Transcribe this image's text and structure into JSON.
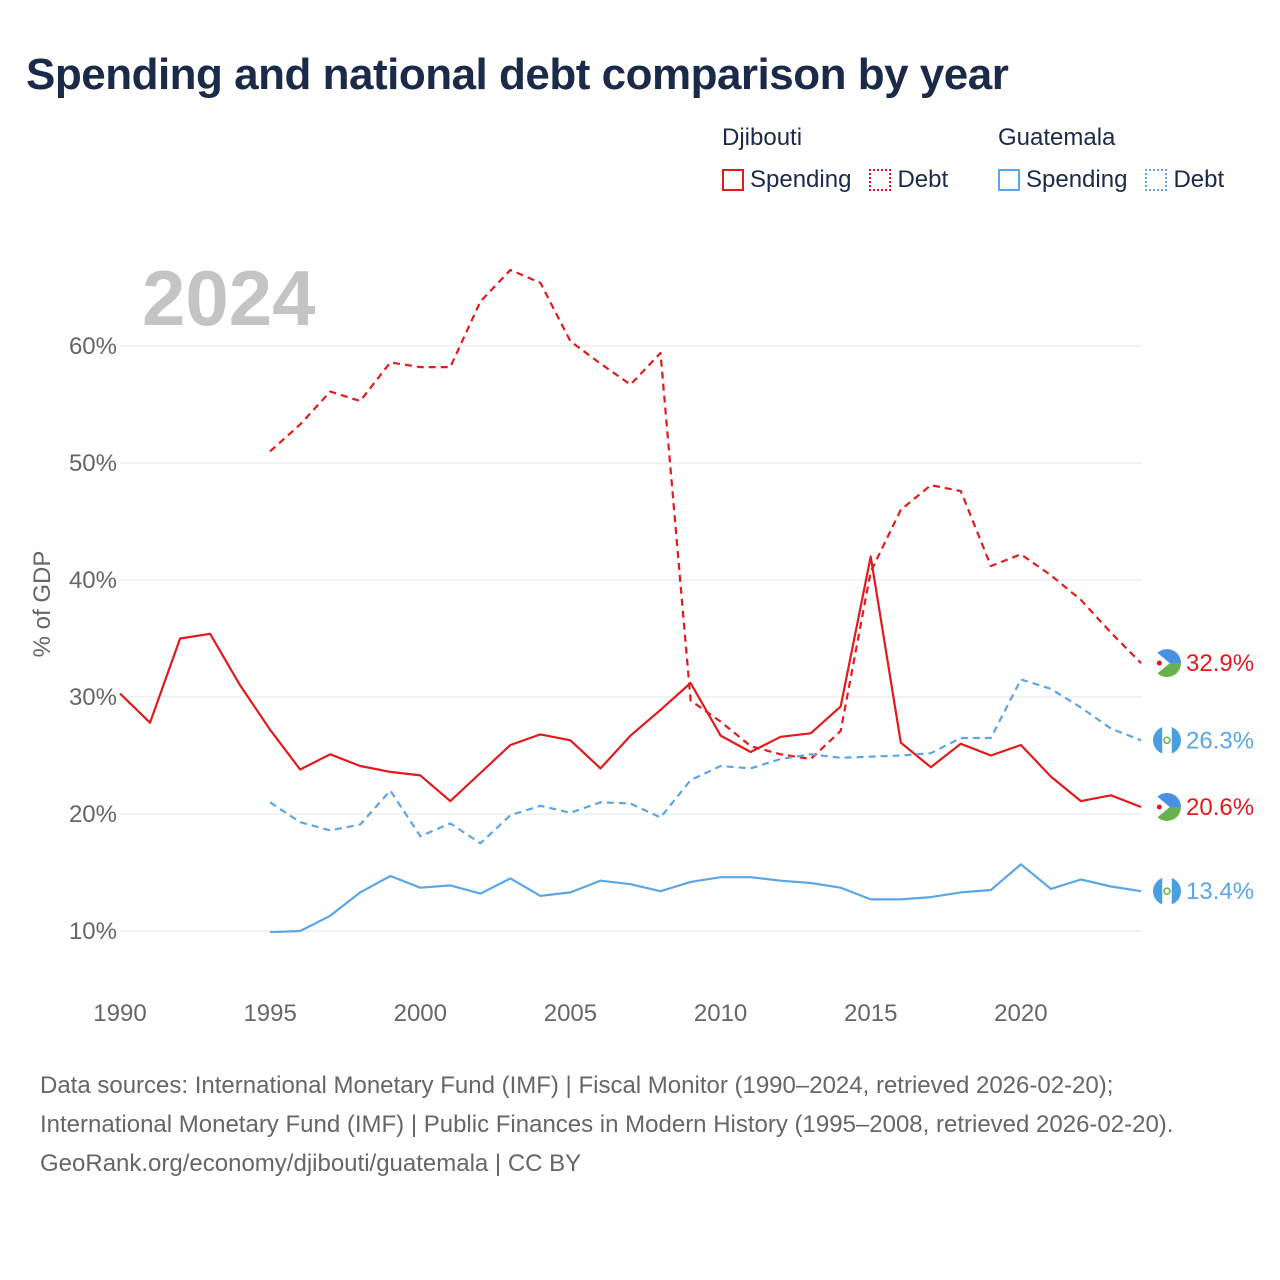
{
  "title": "Spending and national debt comparison by year",
  "legend": {
    "groups": [
      {
        "country": "Djibouti",
        "spending": "Spending",
        "debt": "Debt"
      },
      {
        "country": "Guatemala",
        "spending": "Spending",
        "debt": "Debt"
      }
    ]
  },
  "footer": {
    "sources": "Data sources: International Monetary Fund (IMF) | Fiscal Monitor (1990–2024, retrieved 2026-02-20); International Monetary Fund (IMF) | Public Finances in Modern History (1995–2008, retrieved 2026-02-20).",
    "credit": "GeoRank.org/economy/djibouti/guatemala | CC BY"
  },
  "colors": {
    "djibouti": "#e31a1c",
    "guatemala": "#5aa6e6"
  },
  "chart_data": {
    "type": "line",
    "current_year_label": "2024",
    "ylabel": "% of GDP",
    "xlim": [
      1990,
      2024
    ],
    "ylim": [
      5,
      66
    ],
    "xticks": [
      1990,
      1995,
      2000,
      2005,
      2010,
      2015,
      2020
    ],
    "yticks": [
      10,
      20,
      30,
      40,
      50,
      60
    ],
    "ytick_labels": [
      "10%",
      "20%",
      "30%",
      "40%",
      "50%",
      "60%"
    ],
    "series": [
      {
        "name": "Djibouti Spending",
        "country": "Djibouti",
        "kind": "spending",
        "color": "#e31a1c",
        "dash": false,
        "end_label": "20.6%",
        "flag": "djibouti-flag-icon",
        "x": [
          1990,
          1991,
          1992,
          1993,
          1994,
          1995,
          1996,
          1997,
          1998,
          1999,
          2000,
          2001,
          2002,
          2003,
          2004,
          2005,
          2006,
          2007,
          2008,
          2009,
          2010,
          2011,
          2012,
          2013,
          2014,
          2015,
          2016,
          2017,
          2018,
          2019,
          2020,
          2021,
          2022,
          2023,
          2024
        ],
        "values": [
          30.3,
          27.8,
          35.0,
          35.4,
          31.0,
          27.2,
          23.8,
          25.1,
          24.1,
          23.6,
          23.3,
          21.1,
          23.5,
          25.9,
          26.8,
          26.3,
          23.9,
          26.7,
          28.9,
          31.2,
          26.7,
          25.3,
          26.6,
          26.9,
          29.2,
          42.0,
          26.1,
          24.0,
          26.0,
          25.0,
          25.9,
          23.2,
          21.1,
          21.6,
          20.6
        ]
      },
      {
        "name": "Djibouti Debt",
        "country": "Djibouti",
        "kind": "debt",
        "color": "#e31a1c",
        "dash": true,
        "end_label": "32.9%",
        "flag": "djibouti-flag-icon",
        "x": [
          1995,
          1996,
          1997,
          1998,
          1999,
          2000,
          2001,
          2002,
          2003,
          2004,
          2005,
          2006,
          2007,
          2008,
          2009,
          2010,
          2011,
          2012,
          2013,
          2014,
          2015,
          2016,
          2017,
          2018,
          2019,
          2020,
          2021,
          2022,
          2023,
          2024
        ],
        "values": [
          51.0,
          53.3,
          56.1,
          55.3,
          58.6,
          58.2,
          58.2,
          63.8,
          66.5,
          65.4,
          60.4,
          58.5,
          56.7,
          59.4,
          29.7,
          27.9,
          25.8,
          25.1,
          24.7,
          27.1,
          40.7,
          46.0,
          48.1,
          47.6,
          41.2,
          42.2,
          40.4,
          38.3,
          35.5,
          32.9
        ]
      },
      {
        "name": "Guatemala Spending",
        "country": "Guatemala",
        "kind": "spending",
        "color": "#5aa6e6",
        "dash": false,
        "end_label": "13.4%",
        "flag": "guatemala-flag-icon",
        "x": [
          1995,
          1996,
          1997,
          1998,
          1999,
          2000,
          2001,
          2002,
          2003,
          2004,
          2005,
          2006,
          2007,
          2008,
          2009,
          2010,
          2011,
          2012,
          2013,
          2014,
          2015,
          2016,
          2017,
          2018,
          2019,
          2020,
          2021,
          2022,
          2023,
          2024
        ],
        "values": [
          9.9,
          10.0,
          11.3,
          13.3,
          14.7,
          13.7,
          13.9,
          13.2,
          14.5,
          13.0,
          13.3,
          14.3,
          14.0,
          13.4,
          14.2,
          14.6,
          14.6,
          14.3,
          14.1,
          13.7,
          12.7,
          12.7,
          12.9,
          13.3,
          13.5,
          15.7,
          13.6,
          14.4,
          13.8,
          13.4
        ]
      },
      {
        "name": "Guatemala Debt",
        "country": "Guatemala",
        "kind": "debt",
        "color": "#5aa6e6",
        "dash": true,
        "end_label": "26.3%",
        "flag": "guatemala-flag-icon",
        "x": [
          1995,
          1996,
          1997,
          1998,
          1999,
          2000,
          2001,
          2002,
          2003,
          2004,
          2005,
          2006,
          2007,
          2008,
          2009,
          2010,
          2011,
          2012,
          2013,
          2014,
          2015,
          2016,
          2017,
          2018,
          2019,
          2020,
          2021,
          2022,
          2023,
          2024
        ],
        "values": [
          21.0,
          19.3,
          18.6,
          19.1,
          22.0,
          18.1,
          19.2,
          17.5,
          19.9,
          20.7,
          20.1,
          21.0,
          20.9,
          19.7,
          22.9,
          24.1,
          23.9,
          24.7,
          25.1,
          24.8,
          24.9,
          25.0,
          25.2,
          26.5,
          26.5,
          31.5,
          30.7,
          29.1,
          27.3,
          26.3
        ]
      }
    ]
  }
}
